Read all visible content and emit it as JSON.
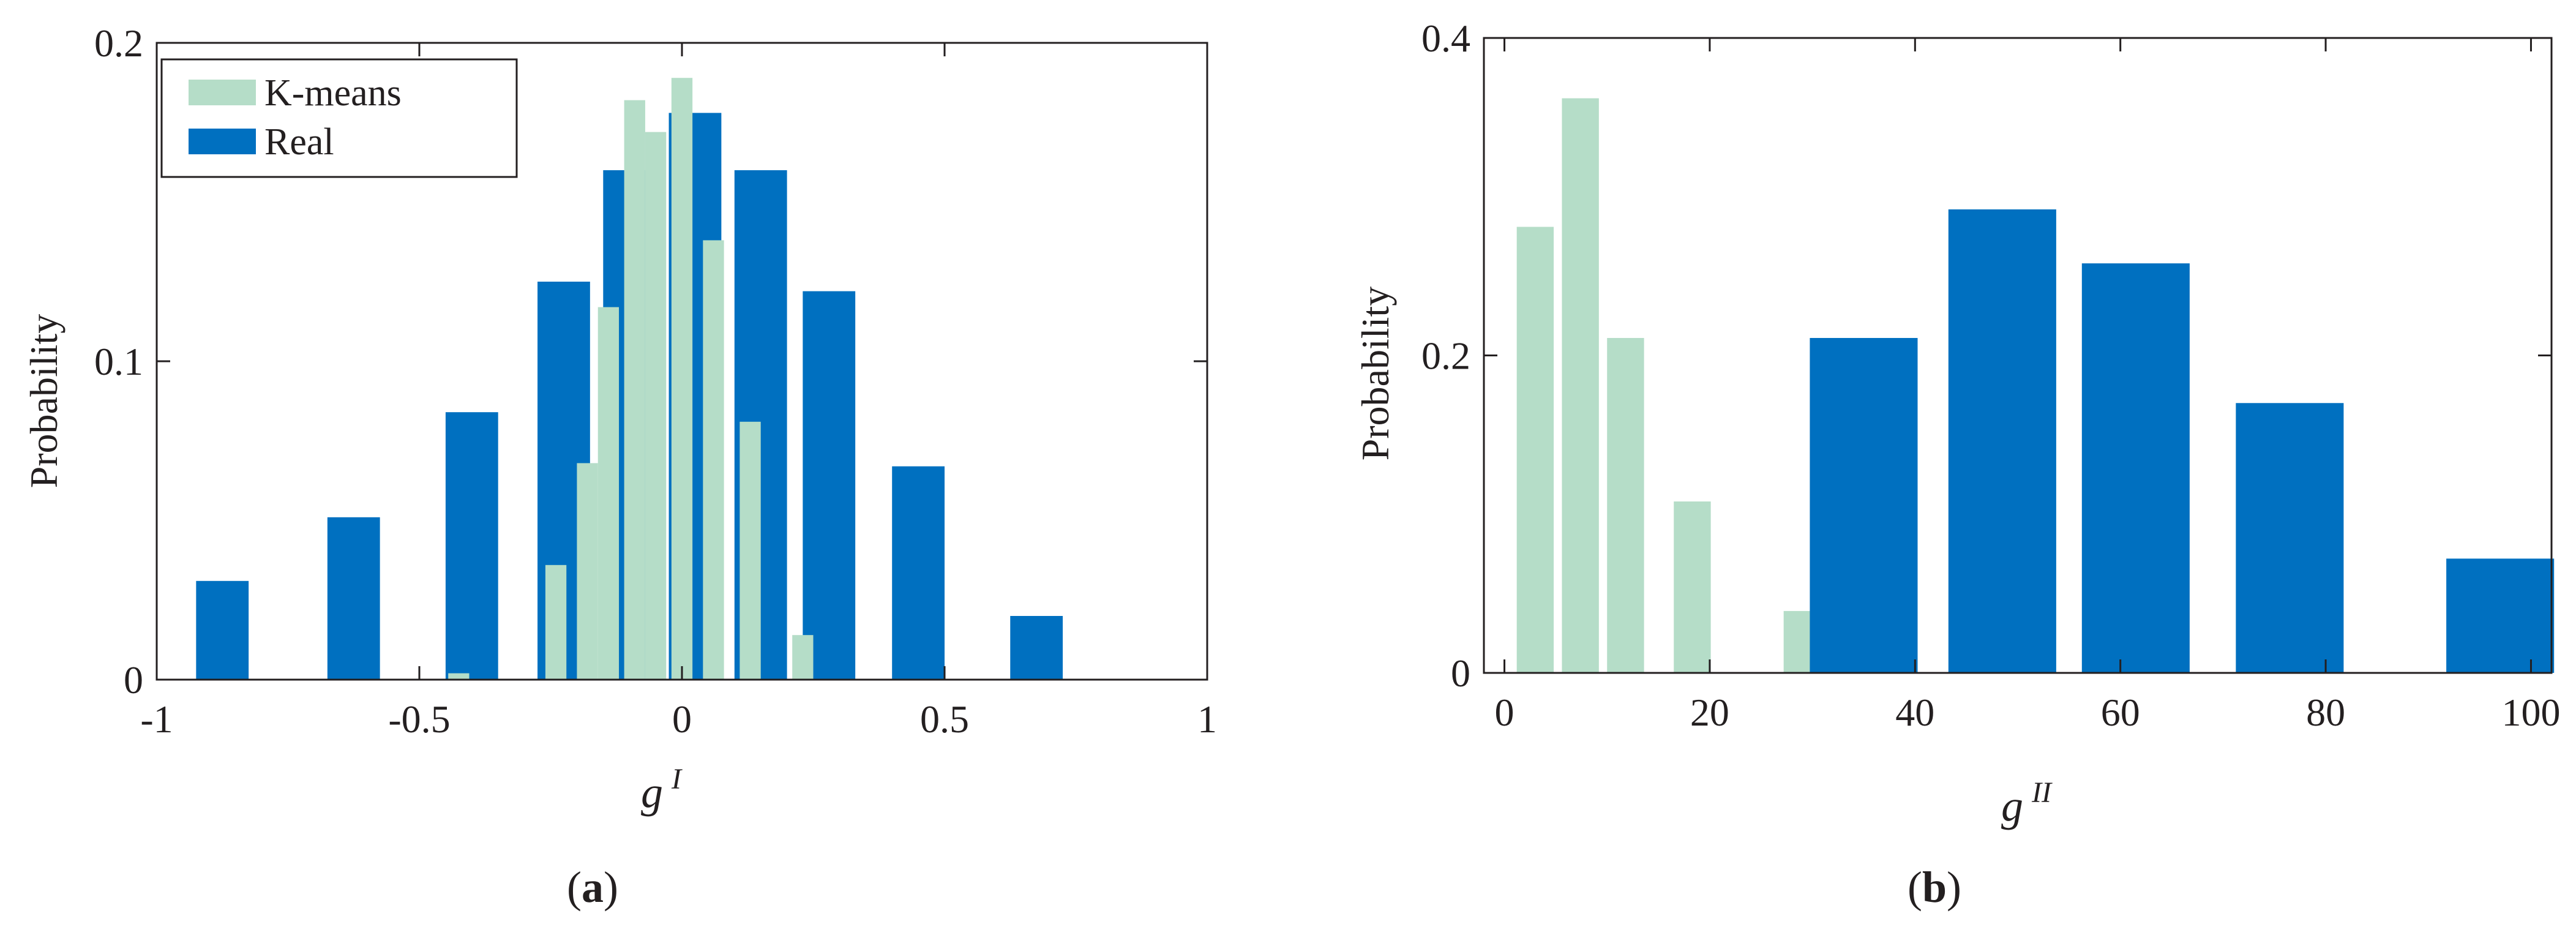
{
  "colors": {
    "kmeans": "#b5ddc8",
    "real": "#0070c0",
    "axis": "#231f20",
    "background": "#ffffff"
  },
  "chart_data": [
    {
      "id": "a",
      "type": "bar",
      "caption_letter": "a",
      "xlabel": "g",
      "xlabel_sup": "I",
      "ylabel": "Probability",
      "xlim": [
        -1,
        1
      ],
      "ylim": [
        0,
        0.2
      ],
      "xticks": [
        -1,
        -0.5,
        0,
        0.5,
        1
      ],
      "xtick_labels": [
        "-1",
        "-0.5",
        "0",
        "0.5",
        "1"
      ],
      "yticks": [
        0,
        0.1,
        0.2
      ],
      "ytick_labels": [
        "0",
        "0.1",
        "0.2"
      ],
      "legend": {
        "position": "top-left",
        "entries": [
          "K-means",
          "Real"
        ]
      },
      "series": [
        {
          "name": "Real",
          "color": "#0070c0",
          "bar_width": 0.1,
          "x": [
            -0.875,
            -0.625,
            -0.4,
            -0.225,
            -0.1,
            0.025,
            0.15,
            0.28,
            0.45,
            0.675
          ],
          "values": [
            0.031,
            0.051,
            0.084,
            0.125,
            0.16,
            0.178,
            0.16,
            0.122,
            0.067,
            0.02
          ]
        },
        {
          "name": "K-means",
          "color": "#b5ddc8",
          "bar_width": 0.04,
          "x": [
            -0.425,
            -0.24,
            -0.18,
            -0.14,
            -0.09,
            -0.05,
            0.0,
            0.06,
            0.13,
            0.23
          ],
          "values": [
            0.002,
            0.036,
            0.068,
            0.117,
            0.182,
            0.172,
            0.189,
            0.138,
            0.081,
            0.014
          ]
        }
      ]
    },
    {
      "id": "b",
      "type": "bar",
      "caption_letter": "b",
      "xlabel": "g",
      "xlabel_sup": "II",
      "ylabel": "Probability",
      "xlim": [
        -2,
        102
      ],
      "ylim": [
        0,
        0.4
      ],
      "xticks": [
        0,
        20,
        40,
        60,
        80,
        100
      ],
      "xtick_labels": [
        "0",
        "20",
        "40",
        "60",
        "80",
        "100"
      ],
      "yticks": [
        0,
        0.2,
        0.4
      ],
      "ytick_labels": [
        "0",
        "0.2",
        "0.4"
      ],
      "series": [
        {
          "name": "Real",
          "color": "#0070c0",
          "bar_width": 10.5,
          "x": [
            35,
            48.5,
            61.5,
            76.5,
            97
          ],
          "values": [
            0.211,
            0.292,
            0.258,
            0.17,
            0.072
          ]
        },
        {
          "name": "K-means",
          "color": "#b5ddc8",
          "bar_width": 3.6,
          "x": [
            3,
            7.4,
            11.8,
            18.3,
            29
          ],
          "values": [
            0.281,
            0.362,
            0.211,
            0.108,
            0.039
          ]
        }
      ]
    }
  ]
}
